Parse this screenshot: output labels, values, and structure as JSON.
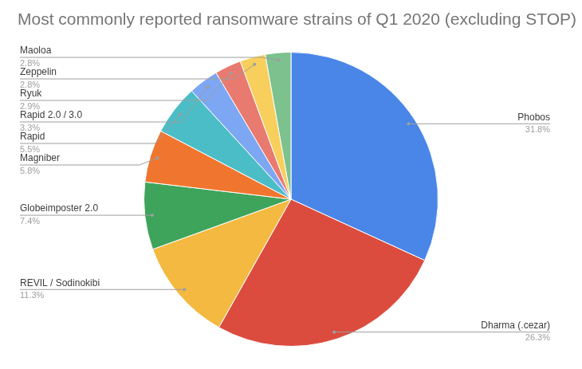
{
  "chart_data": {
    "type": "pie",
    "title": "Most commonly reported ransomware strains of Q1 2020 (excluding STOP)",
    "categories": [
      "Phobos",
      "Dharma (.cezar)",
      "REVIL / Sodinokibi",
      "Globeimposter 2.0",
      "Magniber",
      "Rapid",
      "Rapid 2.0 / 3.0",
      "Ryuk",
      "Zeppelin",
      "Maoloa"
    ],
    "values": [
      31.8,
      26.3,
      11.3,
      7.4,
      5.8,
      5.5,
      3.3,
      2.9,
      2.8,
      2.8
    ],
    "value_labels": [
      "31.8%",
      "26.3%",
      "11.3%",
      "7.4%",
      "5.8%",
      "5.5%",
      "3.3%",
      "2.9%",
      "2.8%",
      "2.8%"
    ],
    "colors": [
      "#4a86e8",
      "#db4c3f",
      "#f4b940",
      "#3fa45b",
      "#f0762f",
      "#4bbdc7",
      "#7da7f2",
      "#e87a6f",
      "#f8cf5c",
      "#7cc18e"
    ],
    "data_labels": true
  }
}
